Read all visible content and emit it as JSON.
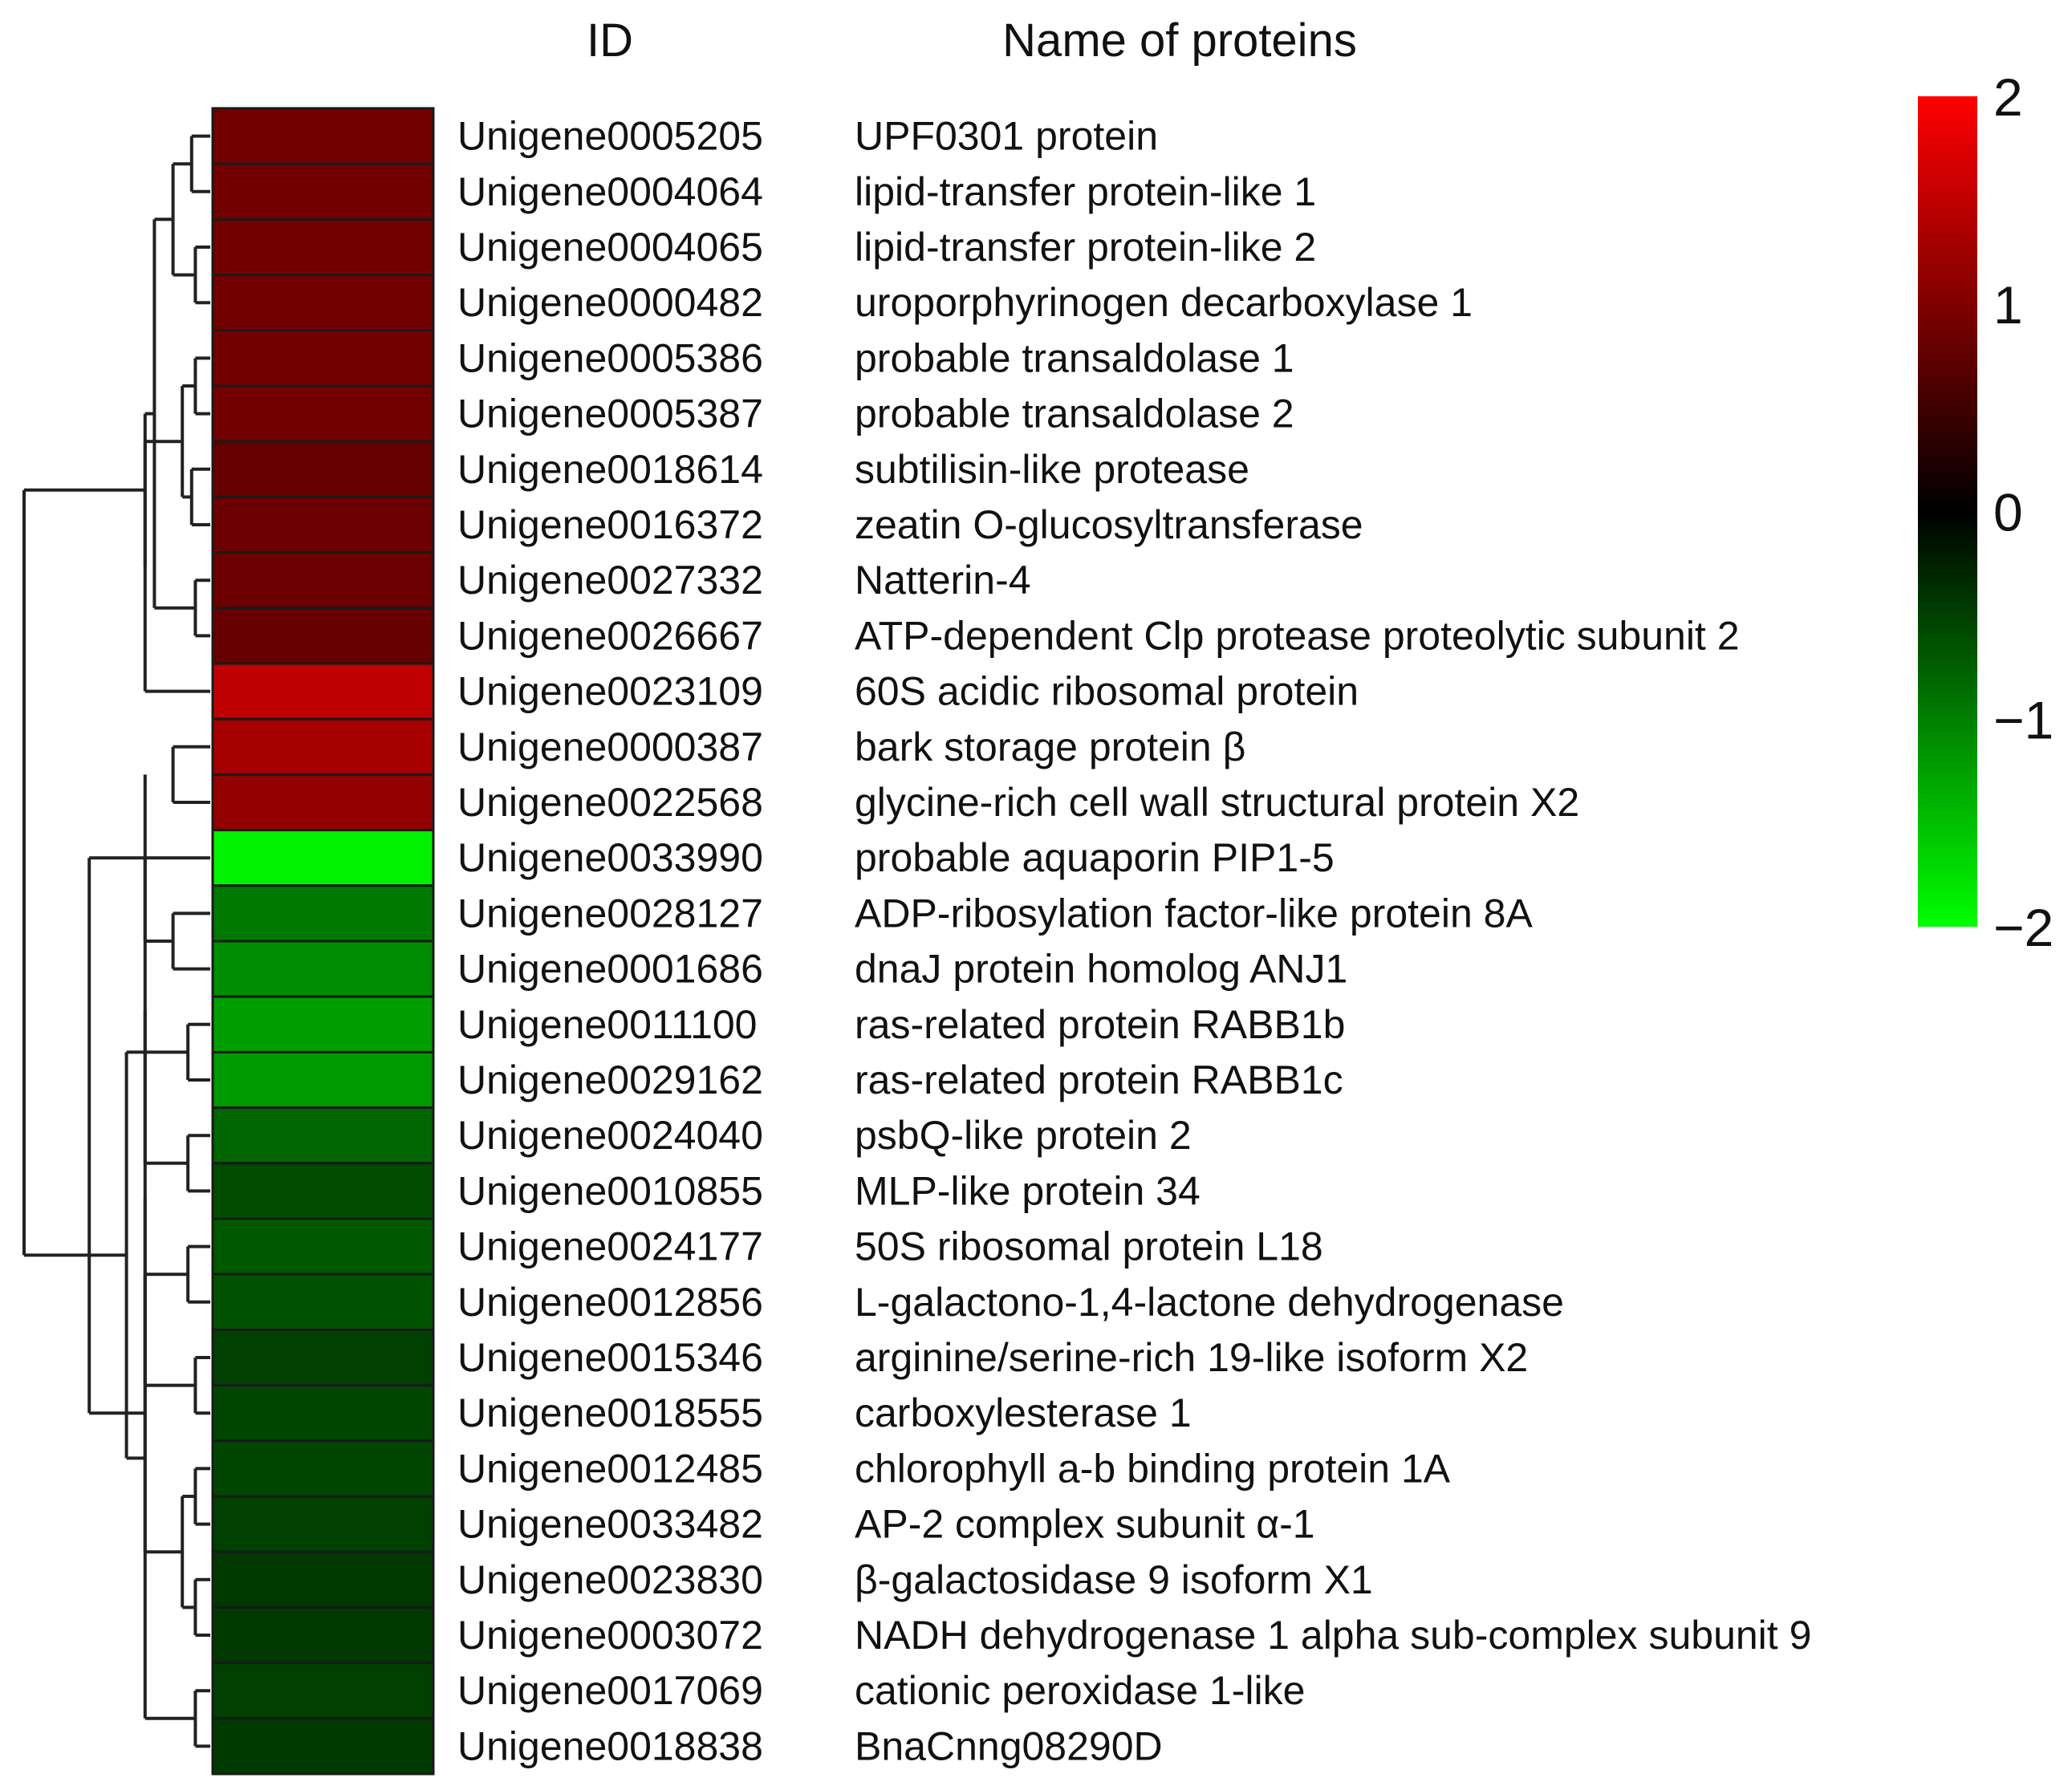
{
  "chart_data": {
    "type": "heatmap",
    "title": "",
    "column_headers": {
      "id": "ID",
      "name": "Name of proteins"
    },
    "color_scale": {
      "min": -2,
      "max": 2,
      "ticks": [
        2,
        1,
        0,
        -1,
        -2
      ],
      "tick_labels": [
        "2",
        "1",
        "0",
        "−1",
        "−2"
      ],
      "colors": {
        "low": "#00ff00",
        "mid": "#000000",
        "high": "#ff0000"
      }
    },
    "rows": [
      {
        "id": "Unigene0005205",
        "name": "UPF0301 protein",
        "value": 0.9
      },
      {
        "id": "Unigene0004064",
        "name": "lipid-transfer protein-like 1",
        "value": 0.9
      },
      {
        "id": "Unigene0004065",
        "name": "lipid-transfer protein-like 2",
        "value": 0.9
      },
      {
        "id": "Unigene0000482",
        "name": "uroporphyrinogen decarboxylase 1",
        "value": 0.9
      },
      {
        "id": "Unigene0005386",
        "name": "probable transaldolase 1",
        "value": 0.9
      },
      {
        "id": "Unigene0005387",
        "name": "probable transaldolase 2",
        "value": 0.9
      },
      {
        "id": "Unigene0018614",
        "name": "subtilisin-like protease",
        "value": 0.8
      },
      {
        "id": "Unigene0016372",
        "name": "zeatin O-glucosyltransferase",
        "value": 0.85
      },
      {
        "id": "Unigene0027332",
        "name": "Natterin-4",
        "value": 0.85
      },
      {
        "id": "Unigene0026667",
        "name": "ATP-dependent Clp protease proteolytic subunit 2",
        "value": 0.8
      },
      {
        "id": "Unigene0023109",
        "name": "60S acidic ribosomal protein",
        "value": 1.5
      },
      {
        "id": "Unigene0000387",
        "name": "bark storage protein β",
        "value": 1.3
      },
      {
        "id": "Unigene0022568",
        "name": "glycine-rich cell wall structural protein X2",
        "value": 1.15
      },
      {
        "id": "Unigene0033990",
        "name": "probable aquaporin PIP1-5",
        "value": -1.9
      },
      {
        "id": "Unigene0028127",
        "name": "ADP-ribosylation factor-like protein 8A",
        "value": -0.95
      },
      {
        "id": "Unigene0001686",
        "name": "dnaJ protein homolog ANJ1",
        "value": -1.1
      },
      {
        "id": "Unigene0011100",
        "name": "ras-related protein RABB1b",
        "value": -1.25
      },
      {
        "id": "Unigene0029162",
        "name": "ras-related protein RABB1c",
        "value": -1.2
      },
      {
        "id": "Unigene0024040",
        "name": "psbQ-like protein 2",
        "value": -0.8
      },
      {
        "id": "Unigene0010855",
        "name": "MLP-like protein 34",
        "value": -0.6
      },
      {
        "id": "Unigene0024177",
        "name": "50S ribosomal protein L18",
        "value": -0.7
      },
      {
        "id": "Unigene0012856",
        "name": "L-galactono-1,4-lactone dehydrogenase",
        "value": -0.65
      },
      {
        "id": "Unigene0015346",
        "name": "arginine/serine-rich 19-like isoform X2",
        "value": -0.5
      },
      {
        "id": "Unigene0018555",
        "name": "carboxylesterase 1",
        "value": -0.55
      },
      {
        "id": "Unigene0012485",
        "name": "chlorophyll a-b binding protein 1A",
        "value": -0.55
      },
      {
        "id": "Unigene0033482",
        "name": "AP-2 complex subunit α-1",
        "value": -0.5
      },
      {
        "id": "Unigene0023830",
        "name": "β-galactosidase 9 isoform X1",
        "value": -0.45
      },
      {
        "id": "Unigene0003072",
        "name": "NADH dehydrogenase 1 alpha sub-complex subunit 9",
        "value": -0.45
      },
      {
        "id": "Unigene0017069",
        "name": "cationic peroxidase 1-like",
        "value": -0.5
      },
      {
        "id": "Unigene0018838",
        "name": "BnaCnng08290D",
        "value": -0.45
      }
    ],
    "dendrogram": {
      "leaves": 30,
      "nodes": [
        [
          0,
          1,
          0.1
        ],
        [
          2,
          3,
          0.08
        ],
        [
          4,
          5,
          0.08
        ],
        [
          6,
          7,
          0.1
        ],
        [
          8,
          9,
          0.08
        ],
        [
          30,
          31,
          0.2
        ],
        [
          32,
          33,
          0.15
        ],
        [
          35,
          34,
          0.3
        ],
        [
          36,
          10,
          0.35
        ],
        [
          11,
          12,
          0.2
        ],
        [
          37,
          38,
          0.35
        ],
        [
          39,
          39,
          0.35
        ],
        [
          14,
          15,
          0.2
        ],
        [
          16,
          17,
          0.12
        ],
        [
          41,
          42,
          0.3
        ],
        [
          18,
          19,
          0.12
        ],
        [
          20,
          21,
          0.12
        ],
        [
          44,
          45,
          0.25
        ],
        [
          22,
          23,
          0.08
        ],
        [
          24,
          25,
          0.08
        ],
        [
          26,
          27,
          0.08
        ],
        [
          28,
          29,
          0.08
        ],
        [
          47,
          48,
          0.15
        ],
        [
          49,
          50,
          0.15
        ],
        [
          51,
          52,
          0.2
        ],
        [
          46,
          53,
          0.35
        ],
        [
          43,
          54,
          0.45
        ],
        [
          13,
          55,
          0.65
        ],
        [
          40,
          56,
          1.0
        ]
      ]
    }
  }
}
